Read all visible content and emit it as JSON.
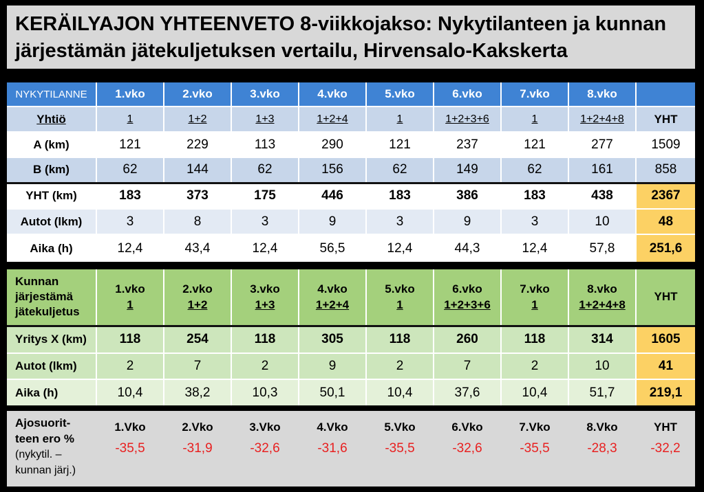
{
  "title": {
    "line1": "KERÄILYAJON YHTEENVETO 8-viikkojakso: Nykytilanteen ja kunnan",
    "line2": "järjestämän jätekuljetuksen vertailu, Hirvensalo-Kakskerta"
  },
  "current": {
    "header": "NYKYTILANNE",
    "weeks": [
      "1.vko",
      "2.vko",
      "3.vko",
      "4.vko",
      "5.vko",
      "6.vko",
      "7.vko",
      "8.vko"
    ],
    "company_label": "Yhtiö",
    "companies": [
      "1",
      "1+2",
      "1+3",
      "1+2+4",
      "1",
      "1+2+3+6",
      "1",
      "1+2+4+8"
    ],
    "total_label": "YHT",
    "rows": [
      {
        "label": "A (km)",
        "values": [
          "121",
          "229",
          "113",
          "290",
          "121",
          "237",
          "121",
          "277"
        ],
        "total": "1509"
      },
      {
        "label": "B (km)",
        "values": [
          "62",
          "144",
          "62",
          "156",
          "62",
          "149",
          "62",
          "161"
        ],
        "total": "858"
      },
      {
        "label": "YHT (km)",
        "values": [
          "183",
          "373",
          "175",
          "446",
          "183",
          "386",
          "183",
          "438"
        ],
        "total": "2367"
      },
      {
        "label": "Autot (lkm)",
        "values": [
          "3",
          "8",
          "3",
          "9",
          "3",
          "9",
          "3",
          "10"
        ],
        "total": "48"
      },
      {
        "label": "Aika (h)",
        "values": [
          "12,4",
          "43,4",
          "12,4",
          "56,5",
          "12,4",
          "44,3",
          "12,4",
          "57,8"
        ],
        "total": "251,6"
      }
    ]
  },
  "municipal": {
    "header_lines": [
      "Kunnan",
      "järjestämä",
      "jätekuljetus"
    ],
    "weeks": [
      "1.vko",
      "2.vko",
      "3.vko",
      "4.vko",
      "5.vko",
      "6.vko",
      "7.vko",
      "8.vko"
    ],
    "companies": [
      "1",
      "1+2",
      "1+3",
      "1+2+4",
      "1",
      "1+2+3+6",
      "1",
      "1+2+4+8"
    ],
    "total_label": "YHT",
    "rows": [
      {
        "label": "Yritys X (km)",
        "values": [
          "118",
          "254",
          "118",
          "305",
          "118",
          "260",
          "118",
          "314"
        ],
        "total": "1605"
      },
      {
        "label": "Autot (lkm)",
        "values": [
          "2",
          "7",
          "2",
          "9",
          "2",
          "7",
          "2",
          "10"
        ],
        "total": "41"
      },
      {
        "label": "Aika (h)",
        "values": [
          "10,4",
          "38,2",
          "10,3",
          "50,1",
          "10,4",
          "37,6",
          "10,4",
          "51,7"
        ],
        "total": "219,1"
      }
    ]
  },
  "difference": {
    "label_lines": [
      "Ajosuorit-",
      "teen ero %",
      "(nykytil. –",
      "kunnan järj.)"
    ],
    "weeks": [
      "1.Vko",
      "2.Vko",
      "3.Vko",
      "4.Vko",
      "5.Vko",
      "6.Vko",
      "7.Vko",
      "8.Vko"
    ],
    "total_label": "YHT",
    "values": [
      "-35,5",
      "-31,9",
      "-32,6",
      "-31,6",
      "-35,5",
      "-32,6",
      "-35,5",
      "-28,3"
    ],
    "total": "-32,2"
  },
  "colors": {
    "header_blue": "#3f83d4",
    "light_blue": "#c7d6ea",
    "green": "#a4d07c",
    "total_yellow": "#fcd164",
    "negative_red": "#e82020"
  }
}
